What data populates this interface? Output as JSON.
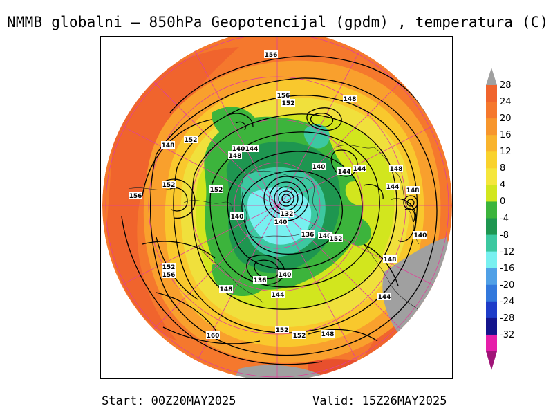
{
  "title": "NMMB globalni – 850hPa Geopotencijal (gpdm) , temperatura (C)",
  "footer": {
    "start": "Start: 00Z20MAY2025",
    "valid": "Valid: 15Z26MAY2025"
  },
  "colorbar": {
    "labels": [
      "28",
      "24",
      "20",
      "16",
      "12",
      "8",
      "4",
      "0",
      "-4",
      "-8",
      "-12",
      "-16",
      "-20",
      "-24",
      "-28",
      "-32"
    ],
    "colors": [
      "#f0642d",
      "#f5782d",
      "#f7962d",
      "#f9b42d",
      "#f9d22d",
      "#f5e63c",
      "#d2e61e",
      "#3cb43c",
      "#1e9650",
      "#3cc8a0",
      "#78f0f0",
      "#50a0e6",
      "#3278dc",
      "#1e3cc8",
      "#14148c",
      "#e61eaa"
    ],
    "top_arrow_color": "#a0a0a0",
    "bottom_arrow_color": "#a01478"
  },
  "contour_labels": [
    "156",
    "156",
    "152",
    "148",
    "152",
    "148",
    "152",
    "140",
    "144",
    "148",
    "140",
    "144",
    "144",
    "148",
    "152",
    "156",
    "152",
    "144",
    "148",
    "140",
    "132",
    "140",
    "136",
    "140",
    "152",
    "140",
    "152",
    "156",
    "148",
    "136",
    "140",
    "148",
    "144",
    "144",
    "160",
    "152",
    "152",
    "148"
  ]
}
